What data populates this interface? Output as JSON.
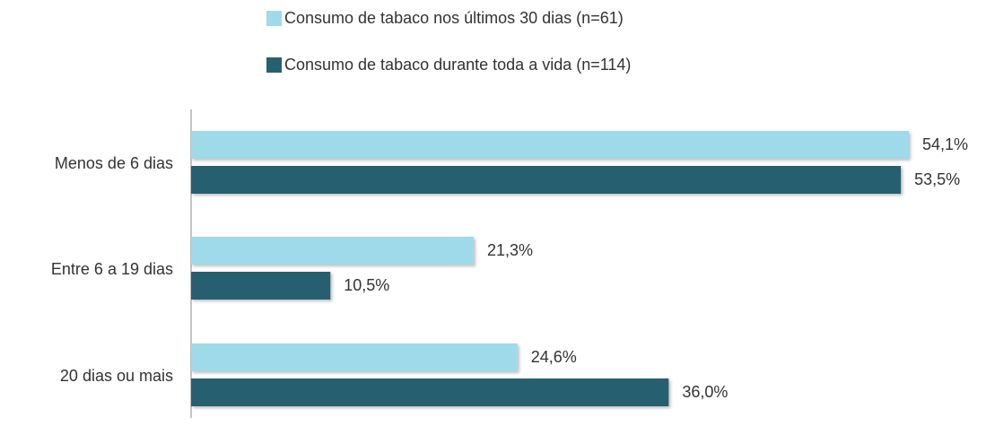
{
  "chart_data": {
    "type": "hbar",
    "categories": [
      "Menos de 6 dias",
      "Entre 6 a 19 dias",
      "20 dias ou mais"
    ],
    "series": [
      {
        "name": "Consumo de tabaco nos últimos 30 dias (n=61)",
        "color": "#9fdaeb",
        "values": [
          54.1,
          21.3,
          24.6
        ],
        "value_labels": [
          "54,1%",
          "21,3%",
          "24,6%"
        ]
      },
      {
        "name": "Consumo de tabaco durante toda a vida (n=114)",
        "color": "#276170",
        "values": [
          53.5,
          10.5,
          36.0
        ],
        "value_labels": [
          "53,5%",
          "10,5%",
          "36,0%"
        ]
      }
    ]
  }
}
